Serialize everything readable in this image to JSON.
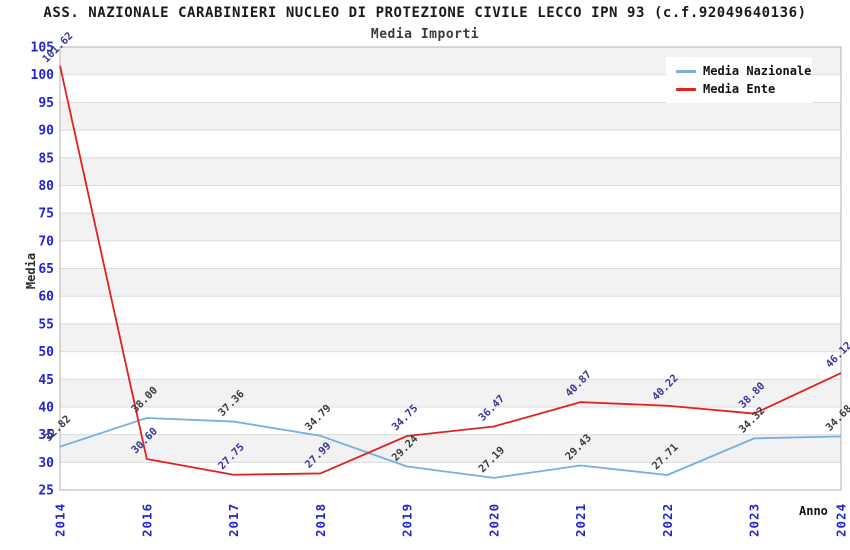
{
  "chart_data": {
    "type": "line",
    "title": "ASS. NAZIONALE CARABINIERI NUCLEO DI PROTEZIONE CIVILE LECCO IPN 93 (c.f.92049640136)",
    "subtitle": "Media Importi",
    "xlabel": "Anno",
    "ylabel": "Media",
    "x": [
      "2014",
      "2016",
      "2017",
      "2018",
      "2019",
      "2020",
      "2021",
      "2022",
      "2023",
      "2024"
    ],
    "series": [
      {
        "name": "Media Nazionale",
        "color": "#79aedd",
        "label_color": "#3b3b3b",
        "values": [
          32.82,
          38.0,
          37.36,
          34.79,
          29.24,
          27.19,
          29.43,
          27.71,
          34.32,
          34.68
        ]
      },
      {
        "name": "Media Ente",
        "color": "#e02222",
        "label_color": "#38389c",
        "values": [
          101.62,
          30.6,
          27.75,
          27.99,
          34.75,
          36.47,
          40.87,
          40.22,
          38.8,
          46.12
        ]
      }
    ],
    "ylim": [
      25,
      105
    ],
    "ytick_step": 5,
    "grid": true,
    "legend_position": "top-right",
    "styles": {
      "tick_color": "#2424cf",
      "band_color": "#f2f2f2",
      "gridline_color": "#dcdcdc",
      "frame_color": "#b3b3b3",
      "background": "#ffffff"
    }
  }
}
